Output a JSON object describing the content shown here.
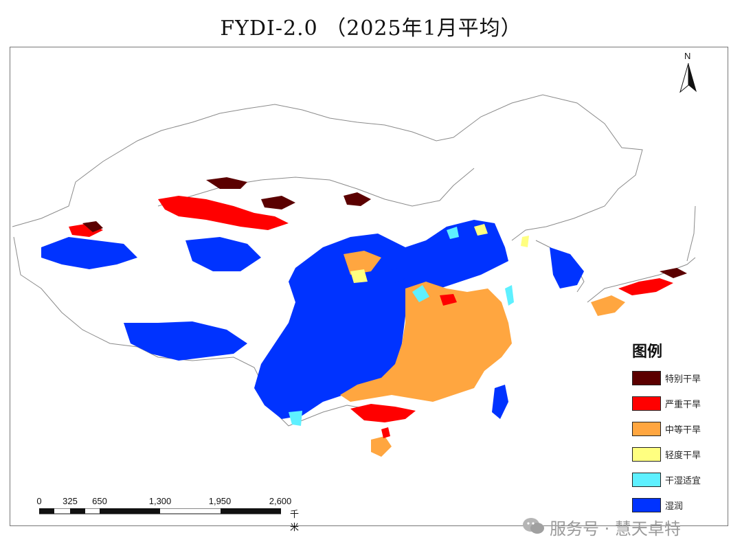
{
  "title": "FYDI-2.0 （2025年1月平均）",
  "north_arrow": {
    "label": "N"
  },
  "legend": {
    "title": "图例",
    "items": [
      {
        "label": "特别干旱",
        "color": "#5b0000"
      },
      {
        "label": "严重干旱",
        "color": "#ff0000"
      },
      {
        "label": "中等干旱",
        "color": "#ffa640"
      },
      {
        "label": "轻度干旱",
        "color": "#ffff80"
      },
      {
        "label": "干湿适宜",
        "color": "#5ef0ff"
      },
      {
        "label": "湿润",
        "color": "#0033ff"
      }
    ]
  },
  "scale_bar": {
    "ticks": [
      "0",
      "325",
      "650",
      "1,300",
      "1,950",
      "2,600"
    ],
    "unit": "千米"
  },
  "watermark": {
    "text": "服务号 · 慧天卓特"
  },
  "colors": {
    "extreme": "#5b0000",
    "severe": "#ff0000",
    "moderate": "#ffa640",
    "mild": "#ffff80",
    "suitable": "#5ef0ff",
    "wet": "#0033ff",
    "boundary": "#888888"
  }
}
